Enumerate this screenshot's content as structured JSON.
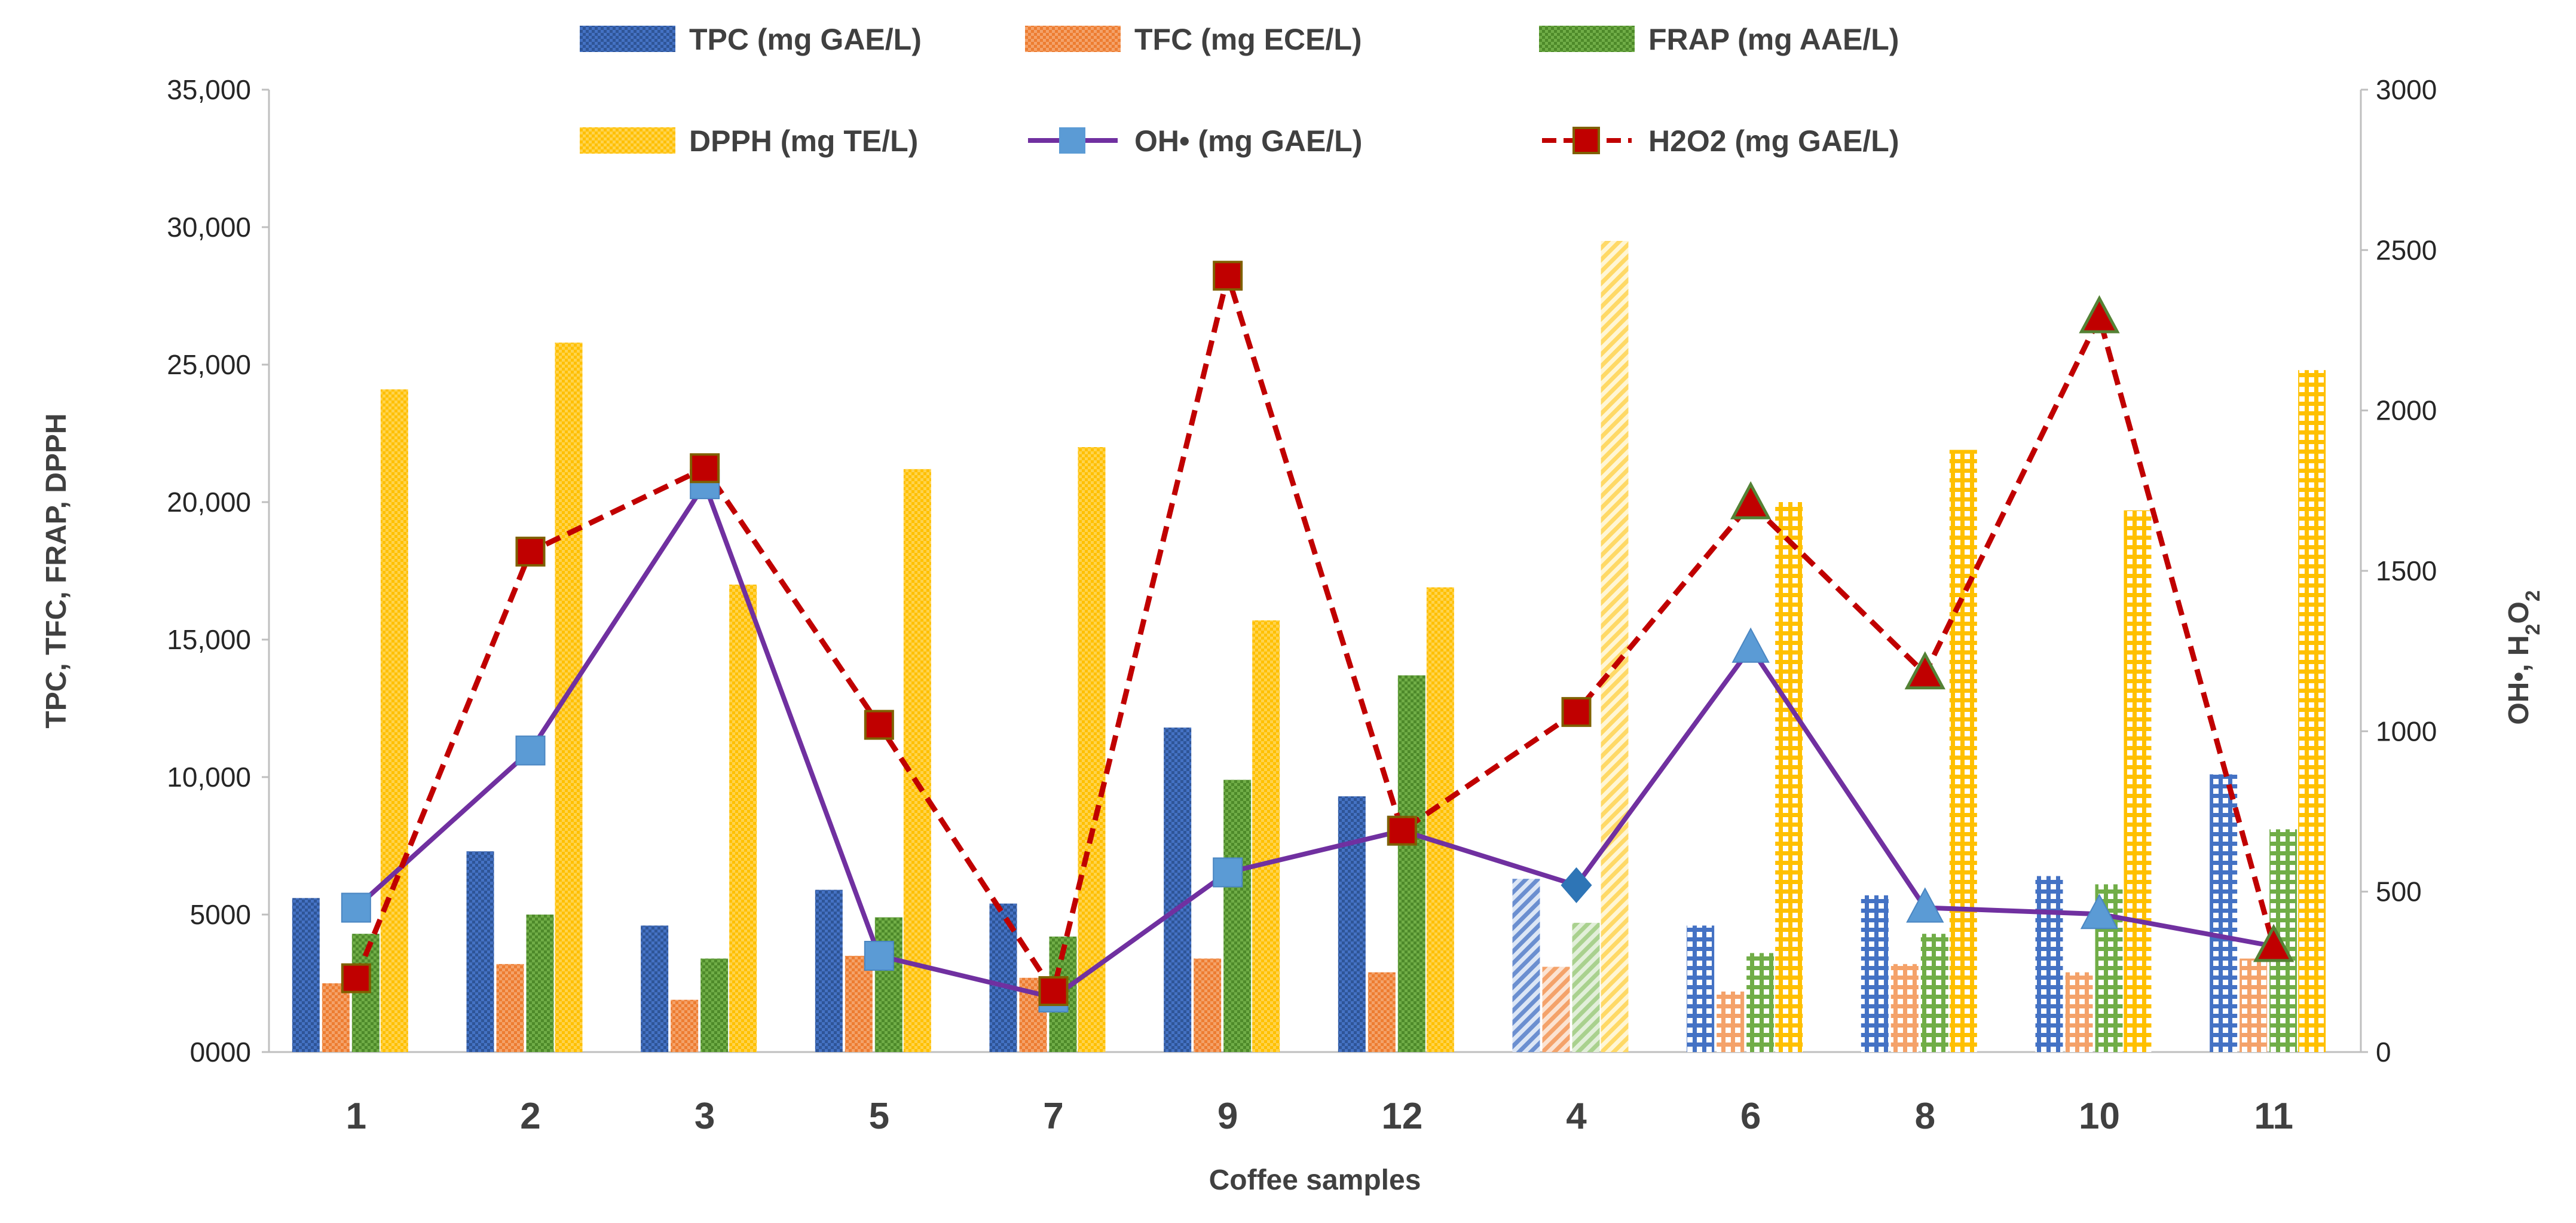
{
  "chart_data": {
    "type": "bar",
    "title": "",
    "xlabel": "Coffee samples",
    "ylabel": "TPC, TFC, FRAP, DPPH",
    "y2label": "OH•, H2O2",
    "ylim": [
      0,
      35000
    ],
    "y2lim": [
      0,
      3000
    ],
    "yticks": [
      "0000",
      "5000",
      "10,000",
      "15,000",
      "20,000",
      "25,000",
      "30,000",
      "35,000"
    ],
    "y2ticks": [
      "0",
      "500",
      "1000",
      "1500",
      "2000",
      "2500",
      "3000"
    ],
    "grid": false,
    "legend_position": "top",
    "categories": [
      "1",
      "2",
      "3",
      "5",
      "7",
      "9",
      "12",
      "4",
      "6",
      "8",
      "10",
      "11"
    ],
    "series": [
      {
        "name": "TPC (mg GAE/L)",
        "axis": "left",
        "kind": "bar",
        "color": "#4472C4",
        "values": [
          5600,
          7300,
          4600,
          5900,
          5400,
          11800,
          9300,
          6300,
          4600,
          5700,
          6400,
          10100
        ]
      },
      {
        "name": "TFC (mg ECE/L)",
        "axis": "left",
        "kind": "bar",
        "color": "#ED7D31",
        "values": [
          2500,
          3200,
          1900,
          3500,
          2700,
          3400,
          2900,
          3100,
          2200,
          3200,
          2900,
          3400
        ]
      },
      {
        "name": "FRAP (mg AAE/L)",
        "axis": "left",
        "kind": "bar",
        "color": "#70AD47",
        "values": [
          4300,
          5000,
          3400,
          4900,
          4200,
          9900,
          13700,
          4700,
          3600,
          4300,
          6100,
          8100
        ]
      },
      {
        "name": "DPPH (mg TE/L)",
        "axis": "left",
        "kind": "bar",
        "color": "#FFC000",
        "values": [
          24100,
          25800,
          17000,
          21200,
          22000,
          15700,
          16900,
          29500,
          20000,
          21900,
          19700,
          24800
        ]
      },
      {
        "name": "OH• (mg GAE/L)",
        "axis": "right",
        "kind": "line",
        "color": "#7030A0",
        "marker_color": "#5B9BD5",
        "values": [
          450,
          940,
          1770,
          300,
          170,
          560,
          690,
          520,
          1260,
          450,
          430,
          330
        ]
      },
      {
        "name": "H2O2 (mg GAE/L)",
        "axis": "right",
        "kind": "line",
        "color": "#C00000",
        "marker_color": "#C00000",
        "values": [
          230,
          1560,
          1820,
          1020,
          190,
          2420,
          690,
          1060,
          1710,
          1180,
          2290,
          330
        ]
      }
    ]
  }
}
